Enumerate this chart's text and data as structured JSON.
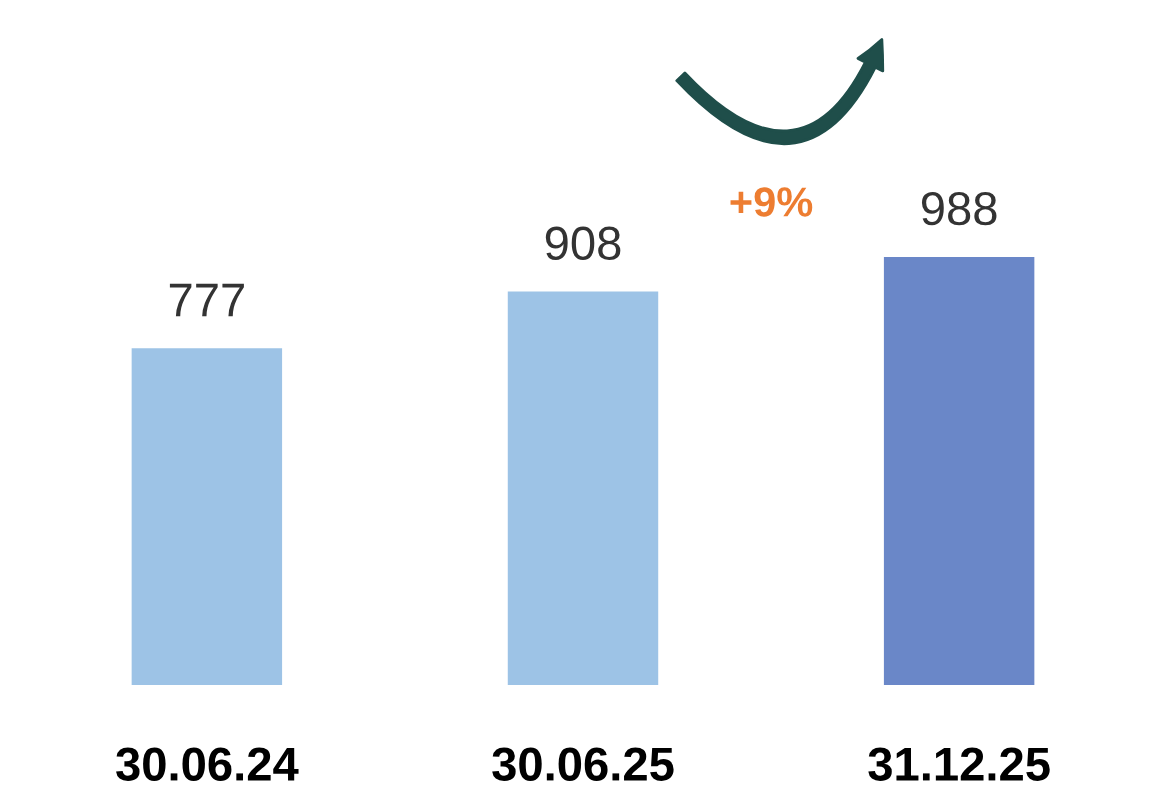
{
  "chart_data": {
    "type": "bar",
    "categories": [
      "30.06.24",
      "30.06.25",
      "31.12.25"
    ],
    "values": [
      777,
      908,
      988
    ],
    "colors": [
      "#9dc3e6",
      "#9dc3e6",
      "#6a87c8"
    ],
    "data_labels": true,
    "annotations": [
      "+9%"
    ]
  }
}
